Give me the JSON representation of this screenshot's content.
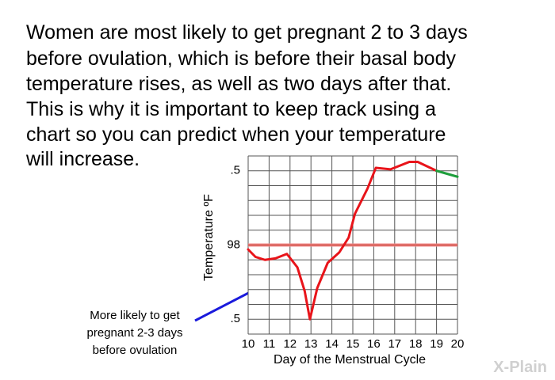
{
  "paragraph": {
    "lines": [
      "Women are most likely to get pregnant 2 to 3 days",
      "before ovulation, which is before their basal body",
      "temperature rises, as well as two days after that.",
      "This is why it is important to keep track using a",
      "chart so you can predict when your temperature",
      "will increase."
    ]
  },
  "logo": "X-Plain",
  "chart_data": {
    "type": "line",
    "ylabel": "Temperature ºF",
    "xlabel": "Day of the Menstrual Cycle",
    "annotation": [
      "More likely to get",
      "pregnant 2-3 days",
      "before ovulation"
    ],
    "xlim": [
      10,
      20
    ],
    "xticks": [
      10,
      11,
      12,
      13,
      14,
      15,
      16,
      17,
      18,
      19,
      20
    ],
    "ylim": [
      97.4,
      98.6
    ],
    "yticks": [
      {
        "value": 98.5,
        "label": ".5"
      },
      98,
      {
        "value": 97.5,
        "label": ".5"
      }
    ],
    "ygrid": [
      97.4,
      97.5,
      97.6,
      97.7,
      97.8,
      97.9,
      98,
      98.1,
      98.2,
      98.3,
      98.4,
      98.5,
      98.6
    ],
    "grid": true,
    "hline": {
      "value": 98,
      "color": "#f08a8a"
    },
    "series": [
      {
        "color": "#e8141a",
        "x": [
          10,
          10.35,
          10.8,
          11.3,
          11.85,
          12.35,
          12.7,
          12.95,
          13.3,
          13.8,
          14.35,
          14.8,
          15.1,
          15.7,
          16.1,
          16.8,
          17.7,
          18.1,
          19
        ],
        "values": [
          97.97,
          97.92,
          97.9,
          97.91,
          97.94,
          97.85,
          97.69,
          97.5,
          97.71,
          97.88,
          97.95,
          98.05,
          98.21,
          98.38,
          98.52,
          98.51,
          98.56,
          98.56,
          98.5
        ]
      },
      {
        "color": "#1e9e3c",
        "x": [
          19,
          20
        ],
        "values": [
          98.5,
          98.46
        ]
      }
    ]
  }
}
